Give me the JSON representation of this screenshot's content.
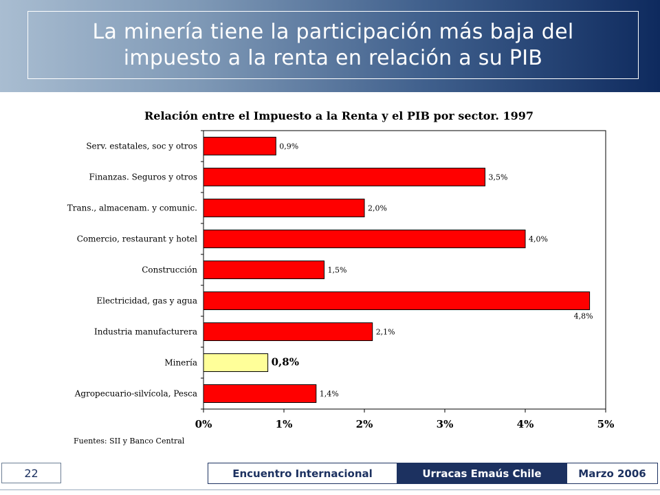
{
  "slide": {
    "title": "La minería tiene la participación más baja del impuesto a la renta en relación a su PIB"
  },
  "footer": {
    "page_number": "22",
    "event": "Encuentro Internacional",
    "organization": "Urracas Emaús Chile",
    "date": "Marzo 2006"
  },
  "colors": {
    "bar_default": "#ff0000",
    "bar_highlight": "#ffff99",
    "title_text": "#ffffff",
    "footer_dark": "#1c3160"
  },
  "chart_data": {
    "type": "bar",
    "orientation": "horizontal",
    "title": "Relación entre el Impuesto a la Renta y el PIB por sector. 1997",
    "source": "Fuentes: SII y Banco Central",
    "categories": [
      "Serv. estatales, soc y otros",
      "Finanzas. Seguros y otros",
      "Trans., almacenam. y comunic.",
      "Comercio, restaurant y hotel",
      "Construcción",
      "Electricidad, gas y agua",
      "Industria manufacturera",
      "Minería",
      "Agropecuario-silvícola, Pesca"
    ],
    "values": [
      0.9,
      3.5,
      2.0,
      4.0,
      1.5,
      4.8,
      2.1,
      0.8,
      1.4
    ],
    "data_labels": [
      "0,9%",
      "3,5%",
      "2,0%",
      "4,0%",
      "1,5%",
      "4,8%",
      "2,1%",
      "0,8%",
      "1,4%"
    ],
    "highlight_category": "Minería",
    "xlim": [
      0,
      5
    ],
    "x_ticks": [
      0,
      1,
      2,
      3,
      4,
      5
    ],
    "x_tick_labels": [
      "0%",
      "1%",
      "2%",
      "3%",
      "4%",
      "5%"
    ],
    "grid": false,
    "legend": "none"
  }
}
